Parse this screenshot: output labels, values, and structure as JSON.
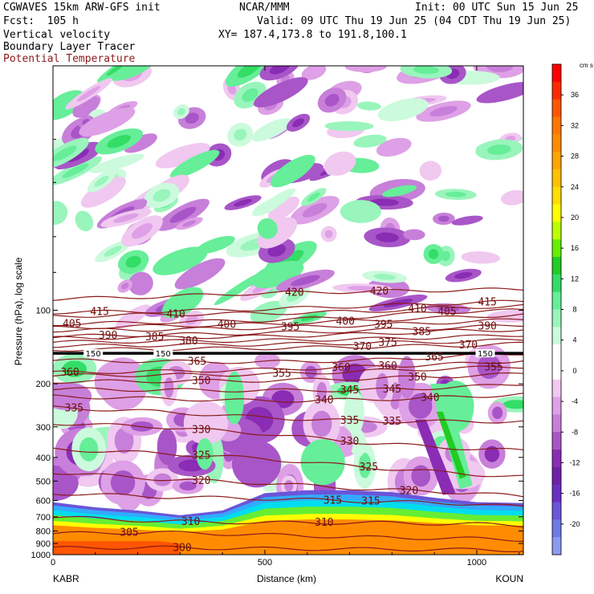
{
  "header": {
    "model": "CGWAVES 15km ARW-GFS init",
    "forecast": "Fcst:  105 h",
    "org": "NCAR/MMM",
    "init": "Init: 00 UTC Sun 15 Jun 25",
    "valid": "Valid: 09 UTC Thu 19 Jun 25 (04 CDT Thu 19 Jun 25)",
    "xy": "XY= 187.4,173.8 to 191.8,100.1",
    "fields": [
      "Vertical velocity",
      "Boundary Layer Tracer",
      "Potential Temperature"
    ],
    "theta_label_color": "#8b1a1a"
  },
  "chart_data": {
    "type": "heatmap",
    "ylabel": "Pressure (hPa), log scale",
    "xlabel": "Distance (km)",
    "y_scale": "log",
    "ylim": [
      1000,
      10
    ],
    "xlim": [
      0,
      1110
    ],
    "x_ticks": [
      "0",
      "500",
      "1000"
    ],
    "x_tick_values": [
      0,
      500,
      1000
    ],
    "y_ticks": [
      "100",
      "200",
      "300",
      "400",
      "500",
      "600",
      "700",
      "800",
      "900",
      "1000"
    ],
    "y_tick_values": [
      100,
      200,
      300,
      400,
      500,
      600,
      700,
      800,
      900,
      1000
    ],
    "endpoints": {
      "left": "KABR",
      "right": "KOUN"
    },
    "colorbar": {
      "units": "cm s⁻¹",
      "labels": [
        "36",
        "32",
        "28",
        "24",
        "20",
        "16",
        "12",
        "8",
        "4",
        "0",
        "-4",
        "-8",
        "-12",
        "-16",
        "-20"
      ],
      "label_values": [
        36,
        32,
        28,
        24,
        20,
        16,
        12,
        8,
        4,
        0,
        -4,
        -8,
        -12,
        -16,
        -20
      ],
      "colors": [
        "#ff0000",
        "#ff2a00",
        "#ff5500",
        "#ff7700",
        "#ff8c00",
        "#ffa500",
        "#ffc000",
        "#ffdd00",
        "#ffff00",
        "#bbff00",
        "#66ee00",
        "#22cc22",
        "#33dd66",
        "#66ee99",
        "#99f5bb",
        "#ccfadd",
        "#ffffff",
        "#ffffff",
        "#f0c8f0",
        "#dea0e6",
        "#c77fd9",
        "#a855c8",
        "#8a2cb4",
        "#7020a8",
        "#6a2fc0",
        "#6a55d8",
        "#6f7ae8",
        "#8a9af0"
      ]
    },
    "tropopause_pressure": 150,
    "tropopause_labels": [
      "150",
      "150",
      "150",
      "150"
    ],
    "theta_contours": [
      {
        "label": "420",
        "x": [
          0,
          250,
          500,
          700,
          900,
          1110
        ],
        "p": [
          90,
          88,
          85,
          84,
          83,
          82
        ],
        "labels_at": [
          570,
          770
        ]
      },
      {
        "label": "415",
        "x": [
          0,
          250,
          500,
          750,
          1000,
          1110
        ],
        "p": [
          102,
          101,
          99,
          96,
          93,
          92
        ],
        "labels_at": [
          110,
          1025
        ]
      },
      {
        "label": "410",
        "x": [
          0,
          250,
          500,
          750,
          900,
          1110
        ],
        "p": [
          106,
          104,
          103,
          101,
          98,
          96
        ],
        "labels_at": [
          290,
          860
        ]
      },
      {
        "label": "405",
        "x": [
          0,
          250,
          500,
          750,
          900,
          1110
        ],
        "p": [
          114,
          112,
          110,
          106,
          102,
          100
        ],
        "labels_at": [
          45,
          930
        ]
      },
      {
        "label": "400",
        "x": [
          0,
          250,
          500,
          750,
          1000,
          1110
        ],
        "p": [
          118,
          116,
          114,
          110,
          106,
          104
        ],
        "labels_at": [
          410,
          690
        ]
      },
      {
        "label": "395",
        "x": [
          0,
          250,
          500,
          750,
          1000,
          1110
        ],
        "p": [
          121,
          120,
          118,
          115,
          111,
          109
        ],
        "labels_at": [
          560,
          780
        ]
      },
      {
        "label": "390",
        "x": [
          0,
          250,
          500,
          750,
          1000,
          1110
        ],
        "p": [
          128,
          126,
          124,
          121,
          117,
          115
        ],
        "labels_at": [
          130,
          1025
        ]
      },
      {
        "label": "385",
        "x": [
          0,
          250,
          500,
          750,
          900,
          1110
        ],
        "p": [
          130,
          129,
          128,
          125,
          122,
          120
        ],
        "labels_at": [
          240,
          870
        ]
      },
      {
        "label": "380",
        "x": [
          0,
          250,
          500,
          750,
          1000,
          1110
        ],
        "p": [
          135,
          134,
          133,
          131,
          128,
          126
        ],
        "labels_at": [
          320
        ]
      },
      {
        "label": "375",
        "x": [
          0,
          250,
          500,
          750,
          1000,
          1110
        ],
        "p": [
          140,
          139,
          138,
          136,
          134,
          132
        ],
        "labels_at": [
          790
        ]
      },
      {
        "label": "370",
        "x": [
          0,
          250,
          500,
          750,
          1000,
          1110
        ],
        "p": [
          145,
          144,
          143,
          141,
          139,
          137
        ],
        "labels_at": [
          730,
          980
        ]
      },
      {
        "label": "365",
        "x": [
          0,
          250,
          500,
          750,
          1000,
          1110
        ],
        "p": [
          160,
          162,
          163,
          160,
          153,
          150
        ],
        "labels_at": [
          340,
          900
        ]
      },
      {
        "label": "360",
        "x": [
          0,
          250,
          500,
          750,
          1000,
          1110
        ],
        "p": [
          180,
          178,
          175,
          170,
          165,
          160
        ],
        "labels_at": [
          40,
          680,
          790
        ]
      },
      {
        "label": "355",
        "x": [
          0,
          250,
          500,
          750,
          1000,
          1110
        ],
        "p": [
          185,
          184,
          183,
          177,
          172,
          170
        ],
        "labels_at": [
          540,
          1040
        ]
      },
      {
        "label": "350",
        "x": [
          0,
          250,
          500,
          750,
          1000,
          1110
        ],
        "p": [
          196,
          195,
          194,
          190,
          185,
          182
        ],
        "labels_at": [
          350,
          860
        ]
      },
      {
        "label": "345",
        "x": [
          0,
          250,
          500,
          750,
          1000,
          1110
        ],
        "p": [
          210,
          212,
          213,
          212,
          205,
          200
        ],
        "labels_at": [
          700,
          800
        ]
      },
      {
        "label": "340",
        "x": [
          0,
          250,
          500,
          750,
          1000,
          1110
        ],
        "p": [
          225,
          230,
          235,
          232,
          225,
          220
        ],
        "labels_at": [
          640,
          890
        ]
      },
      {
        "label": "335",
        "x": [
          0,
          250,
          500,
          750,
          1000,
          1110
        ],
        "p": [
          250,
          260,
          275,
          285,
          285,
          285
        ],
        "labels_at": [
          50,
          700,
          800
        ]
      },
      {
        "label": "330",
        "x": [
          0,
          250,
          500,
          750,
          1000,
          1110
        ],
        "p": [
          290,
          300,
          320,
          350,
          370,
          375
        ],
        "labels_at": [
          350,
          700
        ]
      },
      {
        "label": "325",
        "x": [
          0,
          250,
          500,
          750,
          1000,
          1110
        ],
        "p": [
          370,
          385,
          405,
          440,
          470,
          480
        ],
        "labels_at": [
          350,
          745
        ]
      },
      {
        "label": "320",
        "x": [
          0,
          250,
          500,
          750,
          1000,
          1110
        ],
        "p": [
          460,
          490,
          510,
          540,
          560,
          580
        ],
        "labels_at": [
          350,
          840
        ]
      },
      {
        "label": "315",
        "x": [
          0,
          250,
          500,
          750,
          1000,
          1110
        ],
        "p": [
          560,
          580,
          590,
          605,
          620,
          640
        ],
        "labels_at": [
          660,
          750
        ]
      },
      {
        "label": "310",
        "x": [
          0,
          250,
          500,
          750,
          1000,
          1110
        ],
        "p": [
          700,
          730,
          740,
          740,
          750,
          760
        ],
        "labels_at": [
          325,
          640
        ]
      },
      {
        "label": "305",
        "x": [
          0,
          250,
          500,
          750,
          1000,
          1110
        ],
        "p": [
          820,
          810,
          830,
          850,
          860,
          870
        ],
        "labels_at": [
          180
        ]
      },
      {
        "label": "300",
        "x": [
          0,
          250,
          500,
          750,
          1000,
          1110
        ],
        "p": [
          940,
          935,
          945,
          950,
          955,
          960
        ],
        "labels_at": [
          305
        ]
      }
    ]
  }
}
